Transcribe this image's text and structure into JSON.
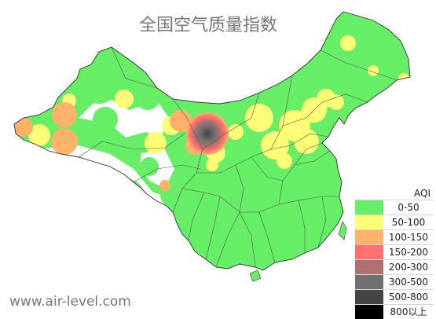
{
  "title": "全国空气质量指数",
  "watermark": "www.air-level.com",
  "legend": {
    "title": "AQI",
    "items": [
      {
        "label": "0-50",
        "color": "#66ee66"
      },
      {
        "label": "50-100",
        "color": "#ffff77"
      },
      {
        "label": "100-150",
        "color": "#ffb36a"
      },
      {
        "label": "150-200",
        "color": "#ff7070"
      },
      {
        "label": "200-300",
        "color": "#b07070"
      },
      {
        "label": "300-500",
        "color": "#707070"
      },
      {
        "label": "500-800",
        "color": "#444444"
      },
      {
        "label": "800以上",
        "color": "#000000"
      }
    ]
  },
  "colors": {
    "background": "#ffffff",
    "map_fill": "#66ee66",
    "border": "#444444",
    "title_text": "#777777"
  }
}
